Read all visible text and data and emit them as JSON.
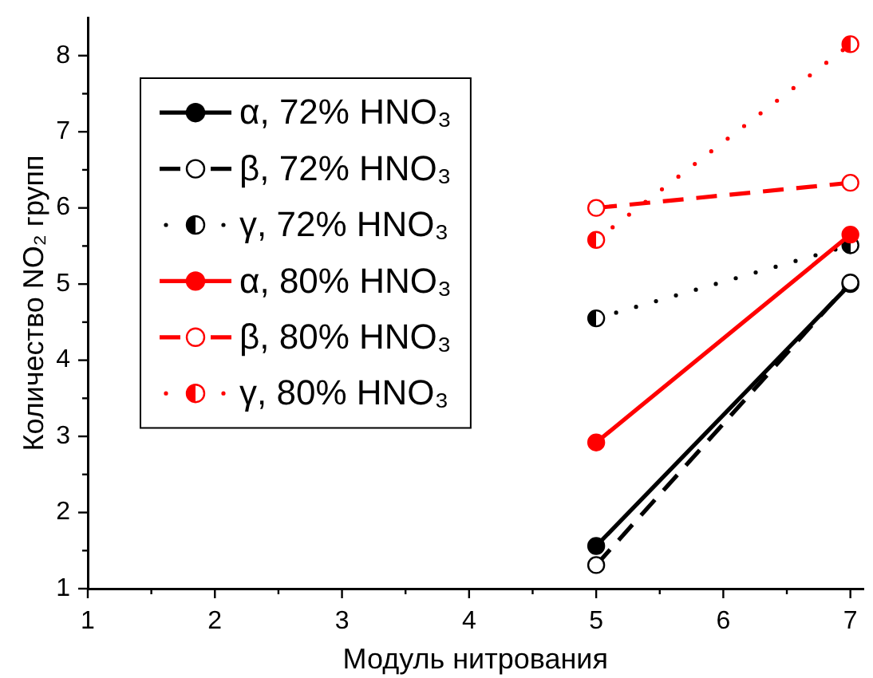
{
  "chart_data": {
    "type": "line",
    "xlabel": "Модуль нитрования",
    "ylabel": "Количество NO₂ групп",
    "x": [
      5,
      7
    ],
    "xlim": [
      1,
      7.1
    ],
    "xticks": [
      1,
      {
        "value": 1.5,
        "label": null
      },
      2,
      {
        "value": 2.5,
        "label": null
      },
      3,
      {
        "value": 3.5,
        "label": null
      },
      4,
      {
        "value": 4.5,
        "label": null
      },
      5,
      {
        "value": 5.5,
        "label": null
      },
      6,
      {
        "value": 6.5,
        "label": null
      },
      7
    ],
    "ylim": [
      1,
      8.5
    ],
    "yticks": [
      1,
      {
        "value": 1.5,
        "label": null
      },
      2,
      {
        "value": 2.5,
        "label": null
      },
      3,
      {
        "value": 3.5,
        "label": null
      },
      4,
      {
        "value": 4.5,
        "label": null
      },
      5,
      {
        "value": 5.5,
        "label": null
      },
      6,
      {
        "value": 6.5,
        "label": null
      },
      7,
      {
        "value": 7.5,
        "label": null
      },
      8
    ],
    "grid": false,
    "legend": "top left",
    "marker": "circle",
    "series": [
      {
        "name": "α, 72% HNO₃",
        "color": "#000000",
        "line_style": "solid",
        "values": [
          1.56,
          5.0
        ]
      },
      {
        "name": "β, 72% HNO₃",
        "color": "#000000",
        "line_style": "dashed",
        "values": [
          1.31,
          5.02
        ]
      },
      {
        "name": "γ, 72% HNO₃",
        "color": "#000000",
        "line_style": "dotted",
        "values": [
          4.55,
          5.51
        ]
      },
      {
        "name": "α, 80% HNO₃",
        "color": "#ff0000",
        "line_style": "solid",
        "values": [
          2.92,
          5.65
        ]
      },
      {
        "name": "β, 80% HNO₃",
        "color": "#ff0000",
        "line_style": "dashed",
        "values": [
          6.0,
          6.33
        ]
      },
      {
        "name": "γ, 80% HNO₃",
        "color": "#ff0000",
        "line_style": "dotted",
        "values": [
          5.58,
          8.15
        ]
      }
    ]
  }
}
